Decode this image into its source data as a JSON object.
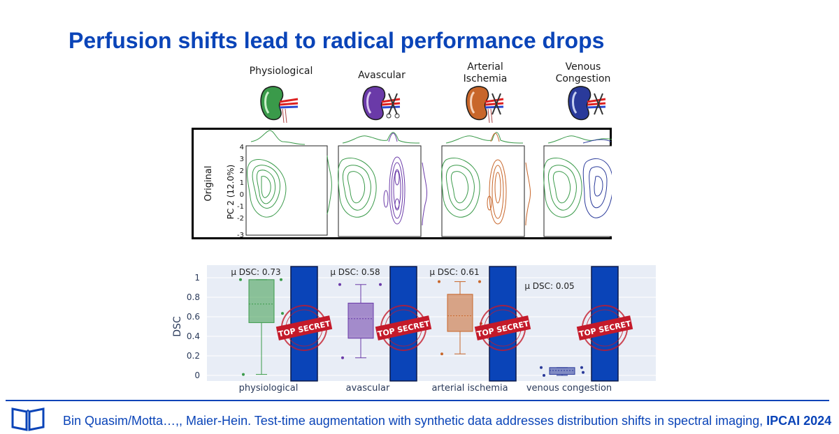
{
  "slide": {
    "title": "Perfusion shifts lead to radical performance drops",
    "footer": {
      "citation": "Bin Quasim/Motta…,, Maier-Hein. Test-time augmentation with synthetic data addresses distribution shifts in spectral imaging,",
      "venue": "IPCAI 2024",
      "icon": "book-icon"
    }
  },
  "kidneys": [
    {
      "label": "Physiological",
      "color": "#3a9a4a",
      "icon": "kidney-icon"
    },
    {
      "label": "Avascular",
      "color": "#6a3aa8",
      "icon": "kidney-icon"
    },
    {
      "label": "Arterial\nIschemia",
      "color": "#c8662a",
      "icon": "kidney-icon"
    },
    {
      "label": "Venous\nCongestion",
      "color": "#2a3a9a",
      "icon": "kidney-icon"
    }
  ],
  "contour_panel": {
    "row_label": "Original",
    "ylabel": "PC 2 (12.0%)",
    "yticks": [
      "4",
      "3",
      "2",
      "1",
      "0",
      "-1",
      "-2",
      "-3"
    ]
  },
  "chart_data": {
    "type": "box",
    "categories": [
      "physiological",
      "avascular",
      "arterial ischemia",
      "venous congestion"
    ],
    "ylabel": "DSC",
    "yticks": [
      "1",
      "0.8",
      "0.6",
      "0.4",
      "0.2",
      "0"
    ],
    "ylim": [
      0,
      1.1
    ],
    "annotation_prefix": "μ DSC:",
    "mean_dsc": [
      "0.73",
      "0.58",
      "0.61",
      "0.05"
    ],
    "colors": [
      "#3a9a4a",
      "#6a3aa8",
      "#c8662a",
      "#2a3a9a"
    ],
    "series": [
      {
        "name": "physiological",
        "q1": 0.54,
        "median": 0.73,
        "q3": 0.98,
        "whisker_low": 0.01,
        "whisker_high": 0.98
      },
      {
        "name": "avascular",
        "q1": 0.38,
        "median": 0.58,
        "q3": 0.74,
        "whisker_low": 0.18,
        "whisker_high": 0.93
      },
      {
        "name": "arterial ischemia",
        "q1": 0.45,
        "median": 0.61,
        "q3": 0.83,
        "whisker_low": 0.22,
        "whisker_high": 0.96
      },
      {
        "name": "venous congestion",
        "q1": 0.01,
        "median": 0.05,
        "q3": 0.08,
        "whisker_low": 0.0,
        "whisker_high": 0.08
      }
    ],
    "stamp_text": "TOP SECRET",
    "grid": true
  }
}
